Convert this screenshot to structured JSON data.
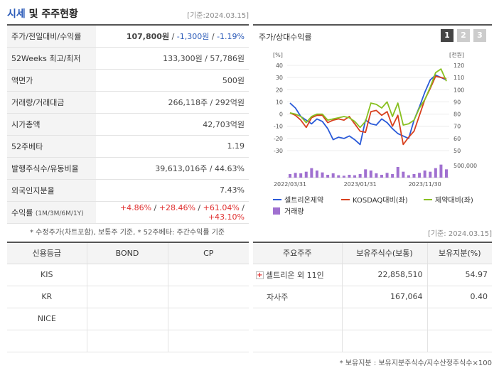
{
  "header": {
    "title_prefix": "시세",
    "title_suffix": "및 주주현황",
    "base_date": "[기준:2024.03.15]"
  },
  "quote_rows": [
    {
      "key": "주가/전일대비/수익률",
      "price": "107,800원",
      "sep1": " / ",
      "change": "-1,300원",
      "sep2": " / ",
      "rate": "-1.19%"
    },
    {
      "key": "52Weeks 최고/최저",
      "value": "133,300원 / 57,786원"
    },
    {
      "key": "액면가",
      "value": "500원"
    },
    {
      "key": "거래량/거래대금",
      "value": "266,118주 / 292억원"
    },
    {
      "key": "시가총액",
      "value": "42,703억원"
    },
    {
      "key": "52주베타",
      "value": "1.19"
    },
    {
      "key": "발행주식수/유동비율",
      "value": "39,613,016주 / 44.63%"
    },
    {
      "key": "외국인지분율",
      "value": "7.43%"
    },
    {
      "key": "수익률",
      "key_sub": "(1M/3M/6M/1Y)",
      "values": [
        "+4.86%",
        "+28.46%",
        "+61.04%",
        "+43.10%"
      ],
      "sep": " / "
    }
  ],
  "quote_note": "* 수정주가(차트포함), 보통주 기준, * 52주베타: 주간수익률 기준",
  "chart_panel": {
    "title": "주가/상대수익률",
    "tabs": [
      "1",
      "2",
      "3"
    ]
  },
  "chart_data": {
    "type": "line",
    "left_axis_unit": "[%]",
    "right_axis_unit": "[천원]",
    "left_ticks": [
      "40",
      "30",
      "20",
      "10",
      "0",
      "-10",
      "-20",
      "-30"
    ],
    "right_ticks": [
      "120",
      "110",
      "100",
      "90",
      "80",
      "70",
      "60",
      "50"
    ],
    "volume_tick": "500,000",
    "x_ticks": [
      "2022/03/31",
      "2023/01/31",
      "2023/11/30"
    ],
    "ylim": [
      -30,
      40
    ],
    "series": [
      {
        "name": "셀트리온제약",
        "color": "#2a5ad8",
        "values": [
          9,
          5,
          -2,
          -5,
          -8,
          -4,
          -6,
          -12,
          -21,
          -19,
          -20,
          -18,
          -21,
          -25,
          -5,
          -8,
          -9,
          -4,
          -7,
          -12,
          -16,
          -18,
          -20,
          -5,
          6,
          18,
          28,
          32,
          30,
          28
        ]
      },
      {
        "name": "KOSDAQ대비(좌)",
        "color": "#d8401e",
        "values": [
          1,
          -1,
          -5,
          -11,
          -3,
          -1,
          -1,
          -7,
          -5,
          -4,
          -5,
          -2,
          -8,
          -14,
          -15,
          2,
          3,
          -1,
          2,
          -10,
          -1,
          -25,
          -19,
          -14,
          -1,
          12,
          21,
          31,
          30,
          29
        ]
      },
      {
        "name": "제약대비(좌)",
        "color": "#88c020",
        "values": [
          1,
          0,
          -2,
          -7,
          -2,
          0,
          0,
          -5,
          -4,
          -3,
          -2,
          -3,
          -6,
          -11,
          -6,
          9,
          8,
          5,
          10,
          -2,
          9,
          -9,
          -8,
          -5,
          5,
          12,
          22,
          34,
          37,
          27
        ]
      }
    ],
    "volume_name": "거래량",
    "volume_color": "#a070d0",
    "volume": [
      15,
      20,
      18,
      25,
      40,
      30,
      22,
      12,
      18,
      10,
      8,
      12,
      10,
      15,
      35,
      30,
      18,
      12,
      20,
      15,
      45,
      25,
      10,
      15,
      20,
      30,
      25,
      40,
      55,
      35
    ]
  },
  "credit": {
    "headers": [
      "신용등급",
      "BOND",
      "CP"
    ],
    "rows": [
      [
        "KIS",
        "",
        ""
      ],
      [
        "KR",
        "",
        ""
      ],
      [
        "NICE",
        "",
        ""
      ],
      [
        "",
        "",
        ""
      ]
    ]
  },
  "holders": {
    "base_date": "[기준: 2024.03.15]",
    "headers": [
      "주요주주",
      "보유주식수(보통)",
      "보유지분(%)"
    ],
    "rows": [
      {
        "name": "셀트리온 외 11인",
        "shares": "22,858,510",
        "ratio": "54.97",
        "expand": true
      },
      {
        "name": "자사주",
        "shares": "167,064",
        "ratio": "0.40",
        "expand": false
      },
      {
        "name": "",
        "shares": "",
        "ratio": "",
        "expand": false
      },
      {
        "name": "",
        "shares": "",
        "ratio": "",
        "expand": false
      }
    ],
    "note": "* 보유지분 : 보유지분주식수/지수산정주식수×100"
  }
}
